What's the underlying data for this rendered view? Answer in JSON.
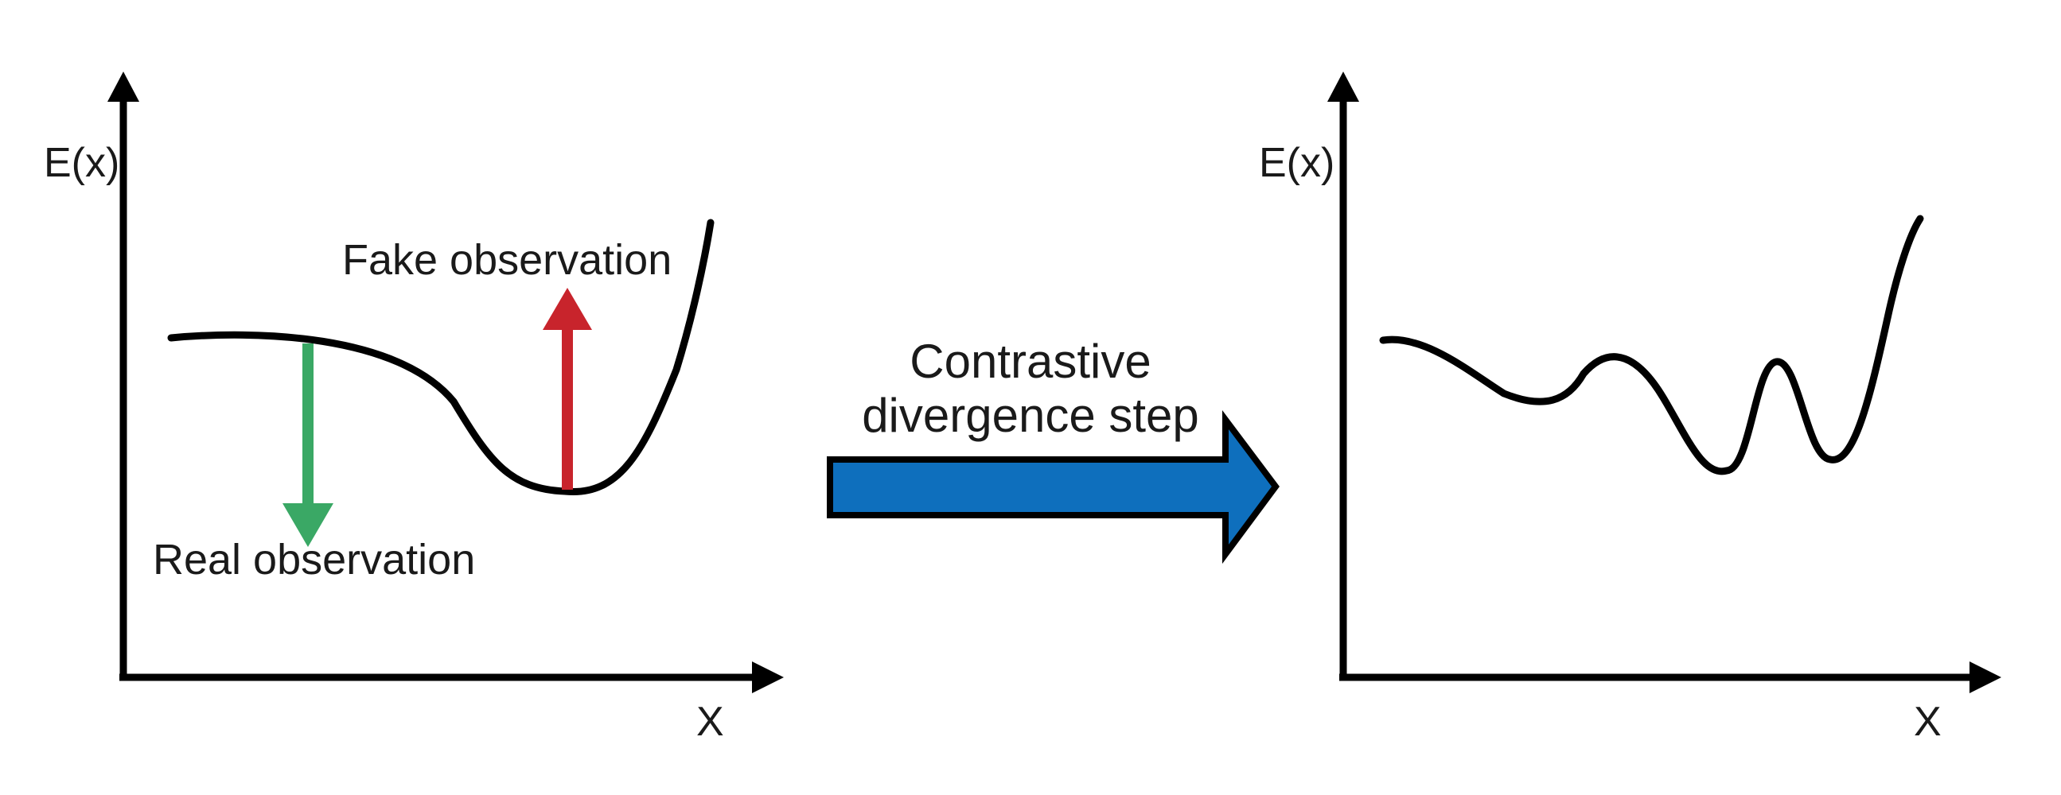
{
  "left_panel": {
    "y_axis_label": "E(x)",
    "x_axis_label": "X",
    "fake_label": "Fake observation",
    "real_label": "Real observation"
  },
  "transition": {
    "line1": "Contrastive",
    "line2": "divergence step"
  },
  "right_panel": {
    "y_axis_label": "E(x)",
    "x_axis_label": "X"
  },
  "colors": {
    "axis": "#000000",
    "fake_arrow": "#c8242c",
    "real_arrow": "#3aa865",
    "step_arrow_fill": "#0e6fbd",
    "step_arrow_stroke": "#000000"
  }
}
